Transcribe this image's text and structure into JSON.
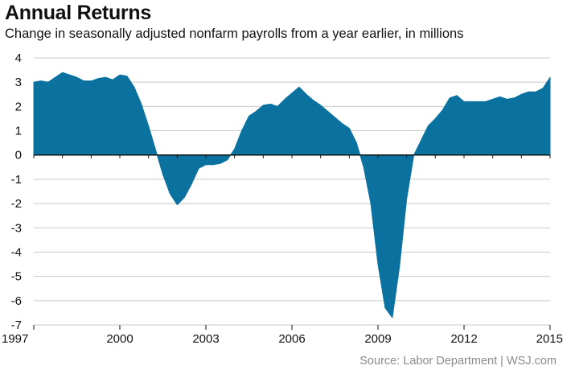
{
  "source_text": "Source: Labor Department  |  WSJ.com",
  "colors": {
    "fill": "#0b72a0",
    "grid": "#c8c8c8",
    "axis": "#111111"
  },
  "chart_data": {
    "type": "area",
    "title": "Annual Returns",
    "subtitle": "Change in seasonally adjusted nonfarm payrolls from a year earlier, in millions",
    "xlabel": "",
    "ylabel": "",
    "xlim": [
      1997,
      2015
    ],
    "ylim": [
      -7,
      4
    ],
    "x_ticks": [
      1997,
      2000,
      2003,
      2006,
      2009,
      2012,
      2015
    ],
    "y_ticks": [
      4,
      3,
      2,
      1,
      0,
      -1,
      -2,
      -3,
      -4,
      -5,
      -6,
      -7
    ],
    "grid": true,
    "series": [
      {
        "name": "",
        "x": [
          1997.0,
          1997.25,
          1997.5,
          1997.75,
          1998.0,
          1998.25,
          1998.5,
          1998.75,
          1999.0,
          1999.25,
          1999.5,
          1999.75,
          2000.0,
          2000.25,
          2000.5,
          2000.75,
          2001.0,
          2001.25,
          2001.5,
          2001.75,
          2002.0,
          2002.25,
          2002.5,
          2002.75,
          2003.0,
          2003.25,
          2003.5,
          2003.75,
          2004.0,
          2004.25,
          2004.5,
          2004.75,
          2005.0,
          2005.25,
          2005.5,
          2005.75,
          2006.0,
          2006.25,
          2006.5,
          2006.75,
          2007.0,
          2007.25,
          2007.5,
          2007.75,
          2008.0,
          2008.25,
          2008.5,
          2008.75,
          2009.0,
          2009.25,
          2009.5,
          2009.75,
          2010.0,
          2010.25,
          2010.5,
          2010.75,
          2011.0,
          2011.25,
          2011.5,
          2011.75,
          2012.0,
          2012.25,
          2012.5,
          2012.75,
          2013.0,
          2013.25,
          2013.5,
          2013.75,
          2014.0,
          2014.25,
          2014.5,
          2014.75,
          2015.0
        ],
        "values": [
          3.0,
          3.05,
          3.0,
          3.2,
          3.4,
          3.3,
          3.2,
          3.05,
          3.05,
          3.15,
          3.2,
          3.1,
          3.3,
          3.25,
          2.8,
          2.1,
          1.2,
          0.2,
          -0.8,
          -1.6,
          -2.05,
          -1.75,
          -1.2,
          -0.55,
          -0.4,
          -0.4,
          -0.35,
          -0.2,
          0.25,
          1.0,
          1.6,
          1.8,
          2.05,
          2.1,
          2.0,
          2.3,
          2.55,
          2.8,
          2.5,
          2.25,
          2.05,
          1.8,
          1.55,
          1.3,
          1.1,
          0.5,
          -0.5,
          -2.0,
          -4.5,
          -6.3,
          -6.7,
          -4.6,
          -1.8,
          0.0,
          0.6,
          1.2,
          1.5,
          1.85,
          2.35,
          2.45,
          2.2,
          2.2,
          2.2,
          2.2,
          2.3,
          2.4,
          2.3,
          2.35,
          2.5,
          2.6,
          2.6,
          2.75,
          3.2
        ]
      }
    ]
  }
}
